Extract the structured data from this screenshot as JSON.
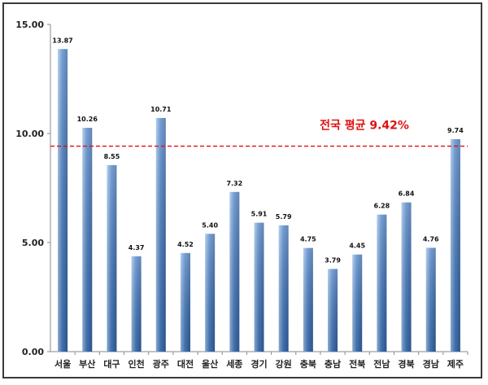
{
  "chart_data": {
    "type": "bar",
    "title": "",
    "xlabel": "",
    "ylabel": "",
    "ylim": [
      0,
      15
    ],
    "yticks": [
      "0.00",
      "5.00",
      "10.00",
      "15.00"
    ],
    "categories": [
      "서울",
      "부산",
      "대구",
      "인천",
      "광주",
      "대전",
      "울산",
      "세종",
      "경기",
      "강원",
      "충북",
      "충남",
      "전북",
      "전남",
      "경북",
      "경남",
      "제주"
    ],
    "values": [
      13.87,
      10.26,
      8.55,
      4.37,
      10.71,
      4.52,
      5.4,
      7.32,
      5.91,
      5.79,
      4.75,
      3.79,
      4.45,
      6.28,
      6.84,
      4.76,
      9.74
    ],
    "value_labels": [
      "13.87",
      "10.26",
      "8.55",
      "4.37",
      "10.71",
      "4.52",
      "5.40",
      "7.32",
      "5.91",
      "5.79",
      "4.75",
      "3.79",
      "4.45",
      "6.28",
      "6.84",
      "4.76",
      "9.74"
    ],
    "reference_line": {
      "value": 9.42,
      "label": "전국 평균 9.42%",
      "style": "dashed",
      "color": "#e01010"
    },
    "grid": false,
    "legend": "none",
    "colors": {
      "bar_dark": "#2f5e9e",
      "bar_light": "#a9c8ec",
      "axis": "#8a8a8a"
    }
  }
}
